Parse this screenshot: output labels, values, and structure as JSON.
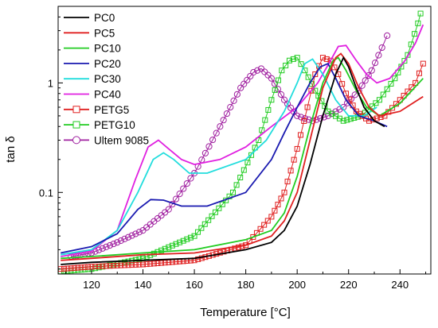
{
  "chart_data": {
    "type": "line",
    "xlabel": "Temperature [°C]",
    "ylabel": "tan δ",
    "xlim": [
      107,
      252
    ],
    "ylim": [
      0.018,
      5.0
    ],
    "yscale": "log",
    "x_ticks": [
      "120",
      "140",
      "160",
      "180",
      "200",
      "220",
      "240"
    ],
    "y_ticks": [
      {
        "value": 0.1,
        "label": "0.1"
      },
      {
        "value": 1,
        "label": "1"
      }
    ],
    "legend_position": "top-left",
    "grid": false,
    "series": [
      {
        "name": "PC0",
        "color": "#000000",
        "marker": "none",
        "points": [
          [
            108,
            0.022
          ],
          [
            120,
            0.023
          ],
          [
            140,
            0.024
          ],
          [
            160,
            0.025
          ],
          [
            180,
            0.03
          ],
          [
            190,
            0.035
          ],
          [
            195,
            0.045
          ],
          [
            200,
            0.075
          ],
          [
            205,
            0.18
          ],
          [
            210,
            0.5
          ],
          [
            215,
            1.2
          ],
          [
            218,
            1.7
          ],
          [
            220,
            1.4
          ],
          [
            223,
            0.9
          ],
          [
            226,
            0.6
          ],
          [
            230,
            0.45
          ],
          [
            234,
            0.4
          ]
        ]
      },
      {
        "name": "PC5",
        "color": "#e02020",
        "marker": "none",
        "points": [
          [
            108,
            0.024
          ],
          [
            120,
            0.025
          ],
          [
            140,
            0.027
          ],
          [
            160,
            0.028
          ],
          [
            180,
            0.033
          ],
          [
            190,
            0.04
          ],
          [
            195,
            0.055
          ],
          [
            200,
            0.1
          ],
          [
            205,
            0.3
          ],
          [
            210,
            0.9
          ],
          [
            215,
            1.7
          ],
          [
            217,
            1.85
          ],
          [
            220,
            1.5
          ],
          [
            224,
            0.9
          ],
          [
            228,
            0.6
          ],
          [
            232,
            0.5
          ],
          [
            240,
            0.55
          ],
          [
            249,
            0.75
          ]
        ]
      },
      {
        "name": "PC10",
        "color": "#22cc22",
        "marker": "none",
        "points": [
          [
            108,
            0.025
          ],
          [
            120,
            0.026
          ],
          [
            140,
            0.028
          ],
          [
            160,
            0.03
          ],
          [
            180,
            0.037
          ],
          [
            190,
            0.045
          ],
          [
            195,
            0.065
          ],
          [
            200,
            0.14
          ],
          [
            205,
            0.4
          ],
          [
            210,
            1.0
          ],
          [
            214,
            1.6
          ],
          [
            216,
            1.7
          ],
          [
            219,
            1.3
          ],
          [
            223,
            0.85
          ],
          [
            227,
            0.6
          ],
          [
            232,
            0.5
          ],
          [
            240,
            0.65
          ],
          [
            249,
            1.1
          ]
        ]
      },
      {
        "name": "PC20",
        "color": "#1a1ab0",
        "marker": "none",
        "points": [
          [
            108,
            0.028
          ],
          [
            120,
            0.032
          ],
          [
            130,
            0.042
          ],
          [
            138,
            0.07
          ],
          [
            143,
            0.086
          ],
          [
            148,
            0.085
          ],
          [
            155,
            0.075
          ],
          [
            165,
            0.075
          ],
          [
            180,
            0.1
          ],
          [
            190,
            0.2
          ],
          [
            195,
            0.35
          ],
          [
            200,
            0.6
          ],
          [
            205,
            1.0
          ],
          [
            209,
            1.4
          ],
          [
            212,
            1.5
          ],
          [
            215,
            1.1
          ],
          [
            219,
            0.7
          ],
          [
            224,
            0.5
          ],
          [
            230,
            0.45
          ],
          [
            235,
            0.4
          ]
        ]
      },
      {
        "name": "PC30",
        "color": "#22dddd",
        "marker": "none",
        "points": [
          [
            108,
            0.027
          ],
          [
            120,
            0.03
          ],
          [
            130,
            0.045
          ],
          [
            138,
            0.1
          ],
          [
            144,
            0.2
          ],
          [
            148,
            0.23
          ],
          [
            152,
            0.2
          ],
          [
            158,
            0.15
          ],
          [
            165,
            0.15
          ],
          [
            180,
            0.2
          ],
          [
            188,
            0.3
          ],
          [
            195,
            0.55
          ],
          [
            200,
            1.0
          ],
          [
            203,
            1.5
          ],
          [
            206,
            1.65
          ],
          [
            210,
            1.2
          ],
          [
            215,
            0.7
          ],
          [
            220,
            0.5
          ],
          [
            226,
            0.5
          ],
          [
            231,
            0.6
          ]
        ]
      },
      {
        "name": "PC40",
        "color": "#e020e0",
        "marker": "none",
        "points": [
          [
            108,
            0.026
          ],
          [
            120,
            0.029
          ],
          [
            130,
            0.045
          ],
          [
            137,
            0.13
          ],
          [
            142,
            0.26
          ],
          [
            146,
            0.3
          ],
          [
            150,
            0.25
          ],
          [
            155,
            0.2
          ],
          [
            160,
            0.18
          ],
          [
            170,
            0.2
          ],
          [
            180,
            0.26
          ],
          [
            190,
            0.4
          ],
          [
            200,
            0.6
          ],
          [
            208,
            1.0
          ],
          [
            213,
            1.6
          ],
          [
            216,
            2.15
          ],
          [
            219,
            2.2
          ],
          [
            223,
            1.6
          ],
          [
            227,
            1.2
          ],
          [
            231,
            1.0
          ],
          [
            236,
            1.1
          ],
          [
            242,
            1.6
          ],
          [
            246,
            2.3
          ],
          [
            249,
            3.4
          ]
        ]
      },
      {
        "name": "PETG5",
        "color": "#e02020",
        "marker": "square",
        "points": [
          [
            108,
            0.02
          ],
          [
            120,
            0.021
          ],
          [
            140,
            0.022
          ],
          [
            160,
            0.024
          ],
          [
            180,
            0.033
          ],
          [
            190,
            0.06
          ],
          [
            195,
            0.1
          ],
          [
            200,
            0.25
          ],
          [
            204,
            0.6
          ],
          [
            207,
            1.2
          ],
          [
            210,
            1.7
          ],
          [
            213,
            1.6
          ],
          [
            216,
            1.2
          ],
          [
            219,
            0.8
          ],
          [
            223,
            0.55
          ],
          [
            228,
            0.45
          ],
          [
            234,
            0.5
          ],
          [
            240,
            0.7
          ],
          [
            246,
            1.0
          ],
          [
            249,
            1.5
          ]
        ]
      },
      {
        "name": "PETG10",
        "color": "#22cc22",
        "marker": "square",
        "points": [
          [
            108,
            0.019
          ],
          [
            120,
            0.02
          ],
          [
            140,
            0.025
          ],
          [
            160,
            0.04
          ],
          [
            175,
            0.1
          ],
          [
            185,
            0.3
          ],
          [
            190,
            0.7
          ],
          [
            194,
            1.3
          ],
          [
            197,
            1.6
          ],
          [
            200,
            1.7
          ],
          [
            203,
            1.3
          ],
          [
            207,
            0.85
          ],
          [
            212,
            0.55
          ],
          [
            218,
            0.45
          ],
          [
            225,
            0.5
          ],
          [
            232,
            0.7
          ],
          [
            238,
            1.1
          ],
          [
            243,
            1.8
          ],
          [
            247,
            3.5
          ],
          [
            248,
            4.3
          ]
        ]
      },
      {
        "name": "Ultem 9085",
        "color": "#a020a0",
        "marker": "circle",
        "points": [
          [
            112,
            0.026
          ],
          [
            120,
            0.028
          ],
          [
            130,
            0.035
          ],
          [
            140,
            0.045
          ],
          [
            150,
            0.07
          ],
          [
            160,
            0.15
          ],
          [
            170,
            0.4
          ],
          [
            178,
            0.9
          ],
          [
            183,
            1.25
          ],
          [
            186,
            1.35
          ],
          [
            190,
            1.1
          ],
          [
            195,
            0.7
          ],
          [
            200,
            0.5
          ],
          [
            206,
            0.45
          ],
          [
            212,
            0.5
          ],
          [
            218,
            0.6
          ],
          [
            224,
            0.85
          ],
          [
            229,
            1.3
          ],
          [
            233,
            2.1
          ],
          [
            235,
            2.7
          ]
        ]
      }
    ]
  }
}
